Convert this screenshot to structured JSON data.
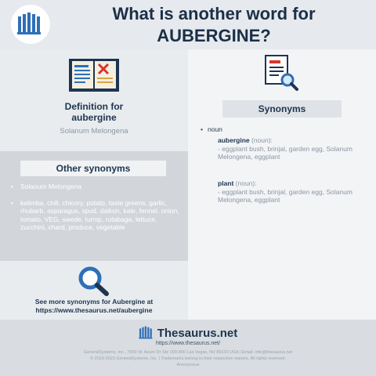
{
  "header": {
    "title_line1": "What is another word for",
    "title_line2": "AUBERGINE?"
  },
  "definition": {
    "title_line1": "Definition for",
    "title_line2": "aubergine",
    "subtitle": "Solanum Melongena"
  },
  "other_synonyms": {
    "heading": "Other synonyms",
    "items": [
      "Solanum Melongena",
      "kalimba, chili, chicory, potato, taste greens, garlic, rhubarb, asparagus, spud, daikon, kale, fennel, onion, tomato, VEG, swede, turnip, rutabaga, lettuce, zucchini, chard, produce, vegetable"
    ]
  },
  "more_link": {
    "line1": "See more synonyms for Aubergine at",
    "line2": "https://www.thesaurus.net/aubergine"
  },
  "synonyms": {
    "heading": "Synonyms",
    "pos": "noun",
    "entries": [
      {
        "word": "aubergine",
        "pos": " (noun):",
        "text": "- eggplant bush, brinjal, garden egg, Solanum Melongena, eggplant"
      },
      {
        "word": "plant",
        "pos": " (noun):",
        "text": "- eggplant bush, brinjal, garden egg, Solanum Melongena, eggplant"
      }
    ]
  },
  "footer": {
    "brand": "Thesaurus.net",
    "url": "https://www.thesaurus.net/",
    "legal_line1": "GeneralSystems, Inc., 7360 W. Azure Dr Ste 100-800 Las Vegas, NV 89130 USA | Email: info@thesaurus.net",
    "legal_line2": "© 2019-2023 GeneralSystems, Inc. | Trademarks belong to their respective owners. All rights reserved.",
    "legal_line3": "Anonymous"
  },
  "colors": {
    "navy": "#1d3550",
    "accent_blue": "#2e6fb8",
    "accent_red": "#d9352b"
  },
  "icons": {
    "logo": "books-icon",
    "definition": "open-book-icon",
    "synonyms": "document-magnifier-icon",
    "more": "magnifier-icon"
  }
}
